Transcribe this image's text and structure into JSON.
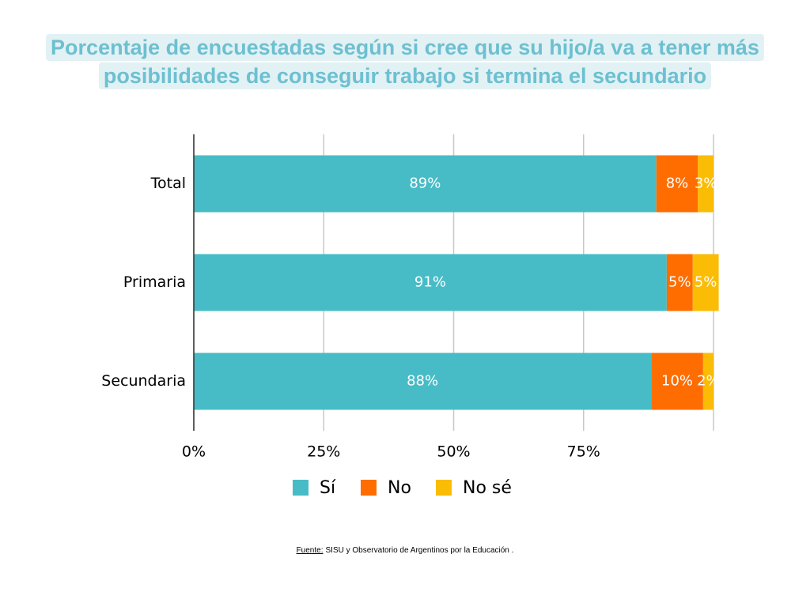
{
  "chart_data": {
    "type": "stacked-bar-horizontal",
    "title": "Porcentaje de encuestadas según si cree que su hijo/a va a tener más posibilidades de conseguir trabajo si termina el secundario",
    "categories": [
      "Total",
      "Primaria",
      "Secundaria"
    ],
    "series": [
      {
        "name": "Sí",
        "color": "#47bcc6",
        "values": [
          89,
          91,
          88
        ],
        "value_labels": [
          "89%",
          "91%",
          "88%"
        ]
      },
      {
        "name": "No",
        "color": "#ff6d00",
        "values": [
          8,
          5,
          10
        ],
        "value_labels": [
          "8%",
          "5%",
          "10%"
        ]
      },
      {
        "name": "No sé",
        "color": "#fbbc05",
        "values": [
          3,
          5,
          2
        ],
        "value_labels": [
          "3%",
          "5%",
          "2%"
        ]
      }
    ],
    "xlim": [
      0,
      100
    ],
    "xticks": [
      {
        "value": 0,
        "label": "0%"
      },
      {
        "value": 25,
        "label": "25%"
      },
      {
        "value": 50,
        "label": "50%"
      },
      {
        "value": 75,
        "label": "75%"
      }
    ],
    "grid": true,
    "legend": "bottom",
    "source": {
      "label": "Fuente:",
      "text": "SISU y Observatorio de Argentinos por la Educación ."
    }
  }
}
